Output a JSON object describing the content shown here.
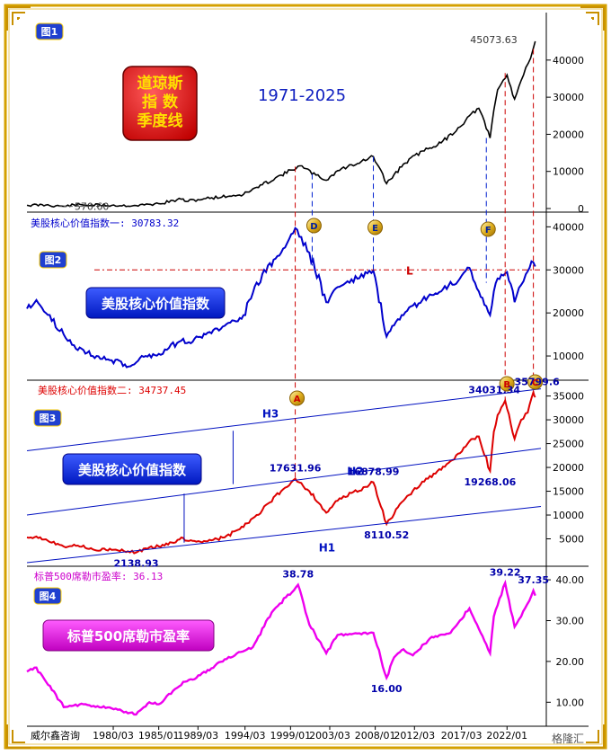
{
  "chart_data": [
    {
      "type": "line",
      "panel_tag": "图1",
      "title_lines": [
        "道琼斯",
        "指    数",
        "季度线"
      ],
      "period": "1971-2025",
      "annotations": [
        {
          "text": "45073.63",
          "x": 2025.0,
          "y": 45073.63
        },
        {
          "text": "570.60",
          "x": 1974.9,
          "y": 570.6
        }
      ],
      "yticks": [
        0,
        10000,
        20000,
        30000,
        40000
      ],
      "ylim": [
        0,
        46500
      ],
      "series": [
        {
          "values": [
            [
              1971,
              880
            ],
            [
              1973,
              950
            ],
            [
              1974.9,
              570
            ],
            [
              1976,
              1000
            ],
            [
              1980,
              850
            ],
            [
              1982.6,
              800
            ],
            [
              1985,
              1300
            ],
            [
              1987.6,
              2600
            ],
            [
              1987.9,
              1900
            ],
            [
              1990,
              2700
            ],
            [
              1994,
              3800
            ],
            [
              1996,
              6400
            ],
            [
              1998,
              9000
            ],
            [
              2000,
              11500
            ],
            [
              2001.7,
              9000
            ],
            [
              2002.8,
              7600
            ],
            [
              2004,
              10200
            ],
            [
              2007.8,
              14000
            ],
            [
              2009.2,
              6700
            ],
            [
              2011,
              12000
            ],
            [
              2013,
              15500
            ],
            [
              2015,
              17700
            ],
            [
              2017,
              22000
            ],
            [
              2018,
              25000
            ],
            [
              2019,
              27000
            ],
            [
              2020.2,
              19000
            ],
            [
              2020.6,
              26500
            ],
            [
              2021,
              32000
            ],
            [
              2022,
              36000
            ],
            [
              2022.8,
              29500
            ],
            [
              2023.5,
              34500
            ],
            [
              2024,
              38000
            ],
            [
              2024.5,
              40500
            ],
            [
              2025,
              45073
            ]
          ]
        }
      ]
    },
    {
      "type": "line",
      "panel_tag": "图2",
      "label": "美股核心价值指数",
      "header": "美股核心价值指数一: 30783.32",
      "hline_label": "L",
      "hline_value": 30000,
      "point_labels": [
        "D",
        "E",
        "F"
      ],
      "yticks": [
        10000,
        20000,
        30000,
        40000
      ],
      "ylim": [
        5000,
        43000
      ],
      "series": [
        {
          "values": [
            [
              1971,
              21000
            ],
            [
              1972,
              23000
            ],
            [
              1973,
              20000
            ],
            [
              1974.9,
              15000
            ],
            [
              1976,
              12500
            ],
            [
              1978,
              10000
            ],
            [
              1980,
              9000
            ],
            [
              1982,
              7600
            ],
            [
              1983,
              9500
            ],
            [
              1985,
              10500
            ],
            [
              1987.6,
              14000
            ],
            [
              1988,
              13000
            ],
            [
              1990,
              15000
            ],
            [
              1992,
              17000
            ],
            [
              1994,
              19500
            ],
            [
              1996,
              29000
            ],
            [
              1998,
              34000
            ],
            [
              1999.5,
              39700
            ],
            [
              2001,
              34000
            ],
            [
              2002.8,
              22500
            ],
            [
              2004,
              26000
            ],
            [
              2007.8,
              29800
            ],
            [
              2009.2,
              14500
            ],
            [
              2011,
              19500
            ],
            [
              2013,
              23000
            ],
            [
              2015,
              25000
            ],
            [
              2017,
              28000
            ],
            [
              2018,
              30500
            ],
            [
              2019,
              25000
            ],
            [
              2020.2,
              19500
            ],
            [
              2020.6,
              25000
            ],
            [
              2021,
              28000
            ],
            [
              2022,
              29500
            ],
            [
              2022.8,
              22500
            ],
            [
              2023.5,
              26500
            ],
            [
              2024,
              29000
            ],
            [
              2024.6,
              32000
            ],
            [
              2025,
              30783
            ]
          ]
        }
      ]
    },
    {
      "type": "line",
      "panel_tag": "图3",
      "label": "美股核心价值指数",
      "header": "美股核心价值指数二: 34737.45",
      "point_labels": [
        "A",
        "B",
        "C"
      ],
      "channel_labels": [
        "H1",
        "H2",
        "H3"
      ],
      "data_labels": [
        {
          "text": "2138.93",
          "x": 1982.6,
          "y": 2138.93
        },
        {
          "text": "17631.96",
          "x": 1999.5,
          "y": 17631.96
        },
        {
          "text": "16878.99",
          "x": 2007.8,
          "y": 16878.99
        },
        {
          "text": "8110.52",
          "x": 2009.2,
          "y": 8110.52
        },
        {
          "text": "19268.06",
          "x": 2020.2,
          "y": 19268.06
        },
        {
          "text": "34031.34",
          "x": 2021.8,
          "y": 34031.34
        },
        {
          "text": "35799.6",
          "x": 2024.8,
          "y": 35799.6
        }
      ],
      "yticks": [
        5000,
        10000,
        15000,
        20000,
        25000,
        30000,
        35000
      ],
      "ylim": [
        0,
        37000
      ],
      "series": [
        {
          "values": [
            [
              1971,
              5300
            ],
            [
              1972,
              5500
            ],
            [
              1973,
              4900
            ],
            [
              1974.9,
              3400
            ],
            [
              1976,
              3800
            ],
            [
              1978,
              2800
            ],
            [
              1980,
              2700
            ],
            [
              1982.6,
              2139
            ],
            [
              1984,
              3200
            ],
            [
              1986,
              3800
            ],
            [
              1987.6,
              5200
            ],
            [
              1988,
              4600
            ],
            [
              1990,
              4500
            ],
            [
              1992,
              5300
            ],
            [
              1994,
              7500
            ],
            [
              1996,
              11000
            ],
            [
              1998,
              15000
            ],
            [
              1999.5,
              17632
            ],
            [
              2001,
              15000
            ],
            [
              2002.8,
              10500
            ],
            [
              2004,
              13000
            ],
            [
              2007.8,
              16879
            ],
            [
              2009.2,
              8110
            ],
            [
              2011,
              13000
            ],
            [
              2013,
              17000
            ],
            [
              2015,
              19500
            ],
            [
              2017,
              23000
            ],
            [
              2018,
              25500
            ],
            [
              2019,
              26500
            ],
            [
              2020.2,
              19268
            ],
            [
              2020.6,
              27500
            ],
            [
              2021,
              31000
            ],
            [
              2021.8,
              34031
            ],
            [
              2022.8,
              26000
            ],
            [
              2023.5,
              30000
            ],
            [
              2024.2,
              31500
            ],
            [
              2024.8,
              35800
            ],
            [
              2025,
              34737
            ]
          ]
        }
      ]
    },
    {
      "type": "line",
      "panel_tag": "图4",
      "label": "标普500席勒市盈率",
      "header": "标普500席勒市盈率: 36.13",
      "data_labels": [
        {
          "text": "38.78",
          "x": 1999.8,
          "y": 38.78
        },
        {
          "text": "16.00",
          "x": 2009.2,
          "y": 16.0
        },
        {
          "text": "39.22",
          "x": 2021.8,
          "y": 39.22
        },
        {
          "text": "37.35",
          "x": 2024.8,
          "y": 37.35
        }
      ],
      "yticks": [
        10.0,
        20.0,
        30.0,
        40.0
      ],
      "ylim": [
        5,
        42
      ],
      "x_ticks": [
        "1980/03",
        "1985/01",
        "1989/03",
        "1994/03",
        "1999/01",
        "2003/03",
        "2008/01",
        "2012/03",
        "2017/03",
        "2022/01"
      ],
      "series": [
        {
          "values": [
            [
              1971,
              17500
            ],
            [
              1972,
              18500
            ],
            [
              1974.9,
              8800
            ],
            [
              1977,
              9500
            ],
            [
              1980,
              8500
            ],
            [
              1982.6,
              7000
            ],
            [
              1984,
              10000
            ],
            [
              1985,
              9500
            ],
            [
              1987.6,
              15000
            ],
            [
              1989,
              16000
            ],
            [
              1991,
              19000
            ],
            [
              1992,
              20500
            ],
            [
              1995,
              23500
            ],
            [
              1997,
              32000
            ],
            [
              1999.8,
              38780
            ],
            [
              2001,
              29000
            ],
            [
              2002.8,
              22000
            ],
            [
              2004,
              26500
            ],
            [
              2007.8,
              27000
            ],
            [
              2009.2,
              16000
            ],
            [
              2010,
              21000
            ],
            [
              2011,
              23000
            ],
            [
              2012,
              21500
            ],
            [
              2014,
              26000
            ],
            [
              2016,
              27000
            ],
            [
              2018,
              33000
            ],
            [
              2019,
              28000
            ],
            [
              2020.2,
              22000
            ],
            [
              2020.6,
              31000
            ],
            [
              2021.8,
              39220
            ],
            [
              2022.8,
              28500
            ],
            [
              2023.5,
              31000
            ],
            [
              2024.8,
              37350
            ],
            [
              2025,
              36130
            ]
          ]
        }
      ]
    }
  ],
  "footer": {
    "left": "威尔鑫咨询",
    "right": "格隆汇"
  },
  "colors": {
    "dow": "#000000",
    "core1": "#0000cc",
    "core2": "#dd0000",
    "cape": "#ee00ee",
    "gold": "#d4a000"
  }
}
